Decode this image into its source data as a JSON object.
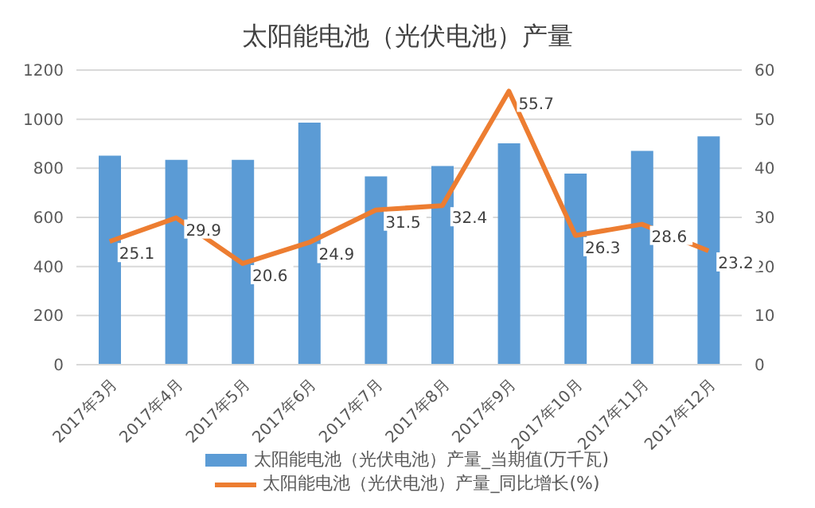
{
  "chart_data": {
    "type": "bar",
    "title": "太阳能电池（光伏电池）产量",
    "categories": [
      "2017年3月",
      "2017年4月",
      "2017年5月",
      "2017年6月",
      "2017年7月",
      "2017年8月",
      "2017年9月",
      "2017年10月",
      "2017年11月",
      "2017年12月"
    ],
    "series": [
      {
        "name": "太阳能电池（光伏电池）产量_当期值(万千瓦)",
        "color": "#5b9bd5",
        "values": [
          851,
          834,
          834,
          986,
          767,
          809,
          902,
          778,
          871,
          930
        ]
      },
      {
        "name": "太阳能电池（光伏电池）产量_同比增长(%)",
        "color": "#ed7d31",
        "type": "line",
        "axis": "y2",
        "values": [
          25.1,
          29.9,
          20.6,
          24.9,
          31.5,
          32.4,
          55.7,
          26.3,
          28.6,
          23.2
        ],
        "value_labels": [
          "25.1",
          "29.9",
          "20.6",
          "24.9",
          "31.5",
          "32.4",
          "55.7",
          "26.3",
          "28.6",
          "23.2"
        ]
      }
    ],
    "ylim": [
      0,
      1200
    ],
    "yticks": [
      0,
      200,
      400,
      600,
      800,
      1000,
      1200
    ],
    "y2lim": [
      0,
      60
    ],
    "y2ticks": [
      0,
      10,
      20,
      30,
      40,
      50,
      60
    ],
    "grid": "y",
    "legend": "bottom",
    "marker": "none"
  }
}
